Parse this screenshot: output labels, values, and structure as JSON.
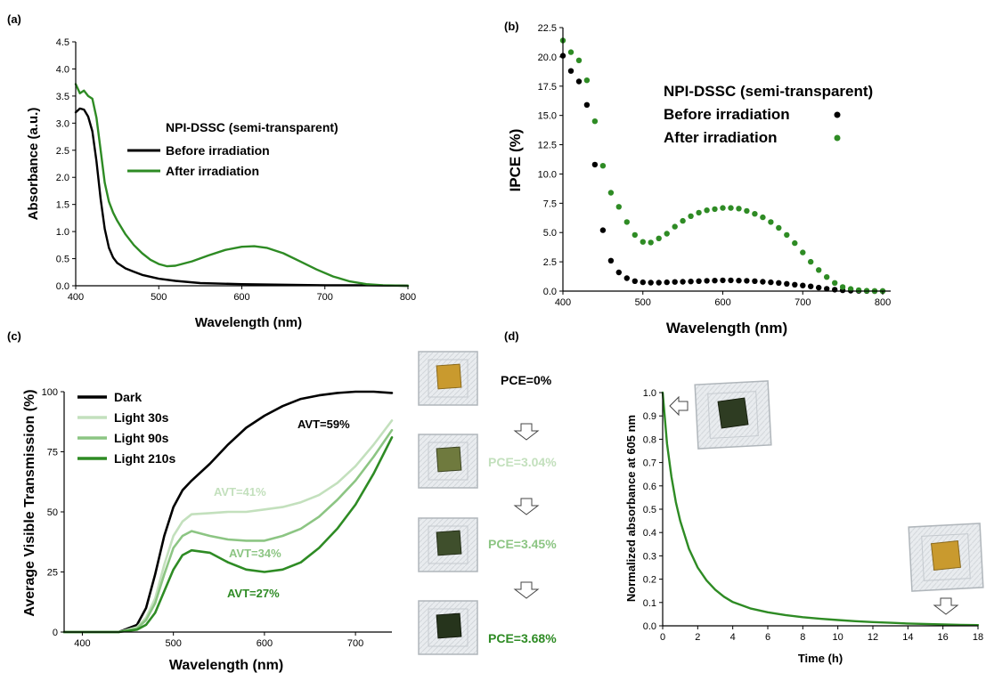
{
  "chart_data": [
    {
      "id": "a",
      "panel_label": "(a)",
      "type": "line",
      "xlabel": "Wavelength (nm)",
      "ylabel": "Absorbance (a.u.)",
      "xlim": [
        400,
        800
      ],
      "ylim": [
        0,
        4.5
      ],
      "xticks": [
        "400",
        "500",
        "600",
        "700",
        "800"
      ],
      "yticks": [
        "0.0",
        "0.5",
        "1.0",
        "1.5",
        "2.0",
        "2.5",
        "3.0",
        "3.5",
        "4.0",
        "4.5"
      ],
      "legend_title": "NPI-DSSC (semi-transparent)",
      "legend_placement": "center-right",
      "series": [
        {
          "name": "Before irradiation",
          "color": "#000000",
          "x": [
            400,
            405,
            410,
            415,
            420,
            425,
            430,
            435,
            440,
            445,
            450,
            460,
            470,
            480,
            500,
            520,
            550,
            600,
            650,
            700,
            750,
            800
          ],
          "y": [
            3.2,
            3.27,
            3.25,
            3.12,
            2.85,
            2.3,
            1.6,
            1.05,
            0.7,
            0.52,
            0.42,
            0.32,
            0.26,
            0.2,
            0.13,
            0.09,
            0.05,
            0.03,
            0.02,
            0.01,
            0.01,
            0.0
          ]
        },
        {
          "name": "After irradiation",
          "color": "#2e8b24",
          "x": [
            400,
            405,
            410,
            415,
            420,
            425,
            430,
            435,
            440,
            445,
            450,
            460,
            470,
            480,
            490,
            500,
            510,
            520,
            540,
            560,
            580,
            600,
            615,
            630,
            650,
            670,
            690,
            710,
            730,
            750,
            770,
            800
          ],
          "y": [
            3.72,
            3.55,
            3.6,
            3.5,
            3.45,
            3.1,
            2.5,
            1.9,
            1.55,
            1.35,
            1.2,
            0.95,
            0.75,
            0.6,
            0.48,
            0.4,
            0.36,
            0.37,
            0.45,
            0.56,
            0.66,
            0.72,
            0.73,
            0.7,
            0.6,
            0.45,
            0.3,
            0.17,
            0.08,
            0.03,
            0.01,
            0.0
          ]
        }
      ]
    },
    {
      "id": "b",
      "panel_label": "(b)",
      "type": "scatter",
      "xlabel": "Wavelength (nm)",
      "ylabel": "IPCE (%)",
      "xlim": [
        400,
        810
      ],
      "ylim": [
        0,
        22.5
      ],
      "xticks": [
        "400",
        "500",
        "600",
        "700",
        "800"
      ],
      "yticks": [
        "0.0",
        "2.5",
        "5.0",
        "7.5",
        "10.0",
        "12.5",
        "15.0",
        "17.5",
        "20.0",
        "22.5"
      ],
      "legend_title": "NPI-DSSC (semi-transparent)",
      "legend_placement": "top-right",
      "series": [
        {
          "name": "Before irradiation",
          "color": "#000000",
          "x": [
            400,
            410,
            420,
            430,
            440,
            450,
            460,
            470,
            480,
            490,
            500,
            510,
            520,
            530,
            540,
            550,
            560,
            570,
            580,
            590,
            600,
            610,
            620,
            630,
            640,
            650,
            660,
            670,
            680,
            690,
            700,
            710,
            720,
            730,
            740,
            750,
            760,
            770,
            780,
            790,
            800
          ],
          "y": [
            20.1,
            18.8,
            17.9,
            15.9,
            10.8,
            5.2,
            2.6,
            1.6,
            1.1,
            0.85,
            0.75,
            0.72,
            0.72,
            0.75,
            0.78,
            0.8,
            0.82,
            0.85,
            0.88,
            0.9,
            0.92,
            0.92,
            0.9,
            0.88,
            0.85,
            0.8,
            0.75,
            0.7,
            0.62,
            0.55,
            0.48,
            0.4,
            0.3,
            0.2,
            0.12,
            0.07,
            0.04,
            0.02,
            0.01,
            0.0,
            0.0
          ]
        },
        {
          "name": "After irradiation",
          "color": "#2e8b24",
          "x": [
            400,
            410,
            420,
            430,
            440,
            450,
            460,
            470,
            480,
            490,
            500,
            510,
            520,
            530,
            540,
            550,
            560,
            570,
            580,
            590,
            600,
            610,
            620,
            630,
            640,
            650,
            660,
            670,
            680,
            690,
            700,
            710,
            720,
            730,
            740,
            750,
            760,
            770,
            780,
            790,
            800
          ],
          "y": [
            21.4,
            20.4,
            19.7,
            18.0,
            14.5,
            10.7,
            8.4,
            7.2,
            5.9,
            4.8,
            4.2,
            4.15,
            4.5,
            4.9,
            5.5,
            6.0,
            6.4,
            6.7,
            6.9,
            7.0,
            7.1,
            7.1,
            7.05,
            6.85,
            6.6,
            6.3,
            5.9,
            5.4,
            4.8,
            4.1,
            3.3,
            2.5,
            1.8,
            1.2,
            0.7,
            0.35,
            0.18,
            0.08,
            0.03,
            0.01,
            0.0
          ]
        }
      ]
    },
    {
      "id": "c",
      "panel_label": "(c)",
      "type": "line",
      "xlabel": "Wavelength (nm)",
      "ylabel": "Average Visible Transmission (%)",
      "xlim": [
        380,
        740
      ],
      "ylim": [
        0,
        100
      ],
      "xticks": [
        "400",
        "500",
        "600",
        "700"
      ],
      "yticks": [
        "0",
        "25",
        "50",
        "75",
        "100"
      ],
      "legend_placement": "top-left",
      "series": [
        {
          "name": "Dark",
          "color": "#000000",
          "x": [
            380,
            440,
            460,
            470,
            480,
            490,
            500,
            510,
            520,
            540,
            560,
            580,
            600,
            620,
            640,
            660,
            680,
            700,
            720,
            740
          ],
          "y": [
            0,
            0,
            3,
            10,
            24,
            40,
            52,
            59,
            63,
            70,
            78,
            85,
            90,
            94,
            97,
            98.5,
            99.5,
            100,
            100,
            99.5
          ]
        },
        {
          "name": "Light 30s",
          "color": "#c3e0bd",
          "x": [
            380,
            440,
            460,
            470,
            480,
            490,
            500,
            510,
            520,
            540,
            560,
            580,
            600,
            620,
            640,
            660,
            680,
            700,
            720,
            740
          ],
          "y": [
            0,
            0,
            2,
            6,
            14,
            28,
            40,
            46,
            49,
            49.5,
            50,
            50,
            51,
            52,
            54,
            57,
            62,
            69,
            78,
            88
          ]
        },
        {
          "name": "Light 90s",
          "color": "#8cc583",
          "x": [
            380,
            440,
            460,
            470,
            480,
            490,
            500,
            510,
            520,
            540,
            560,
            580,
            600,
            620,
            640,
            660,
            680,
            700,
            720,
            740
          ],
          "y": [
            0,
            0,
            1.5,
            5,
            12,
            24,
            35,
            40,
            42,
            40,
            38.5,
            38,
            38,
            40,
            43,
            48,
            55,
            63,
            73,
            84
          ]
        },
        {
          "name": "Light 210s",
          "color": "#2e8b24",
          "x": [
            380,
            440,
            460,
            470,
            480,
            490,
            500,
            510,
            520,
            540,
            560,
            580,
            600,
            620,
            640,
            660,
            680,
            700,
            720,
            740
          ],
          "y": [
            0,
            0,
            1,
            3,
            8,
            17,
            26,
            32,
            34,
            33,
            29,
            26,
            25,
            26,
            29,
            35,
            43,
            53,
            66,
            81
          ]
        }
      ],
      "annotations": [
        {
          "text": "AVT=59%",
          "color": "#000000"
        },
        {
          "text": "AVT=41%",
          "color": "#c3e0bd"
        },
        {
          "text": "AVT=34%",
          "color": "#8cc583"
        },
        {
          "text": "AVT=27%",
          "color": "#2e8b24"
        }
      ],
      "pce_steps": [
        {
          "text": "PCE=0%",
          "color": "#000000",
          "device": "yellow"
        },
        {
          "text": "PCE=3.04%",
          "color": "#c3e0bd",
          "device": "green"
        },
        {
          "text": "PCE=3.45%",
          "color": "#8cc583",
          "device": "green"
        },
        {
          "text": "PCE=3.68%",
          "color": "#2e8b24",
          "device": "green"
        }
      ]
    },
    {
      "id": "d",
      "panel_label": "(d)",
      "type": "line",
      "xlabel": "Time (h)",
      "ylabel": "Normalized absorbance at 605 nm",
      "xlim": [
        0,
        18
      ],
      "ylim": [
        0,
        1.0
      ],
      "xticks": [
        "0",
        "2",
        "4",
        "6",
        "8",
        "10",
        "12",
        "14",
        "16",
        "18"
      ],
      "yticks": [
        "0.0",
        "0.1",
        "0.2",
        "0.3",
        "0.4",
        "0.5",
        "0.6",
        "0.7",
        "0.8",
        "0.9",
        "1.0"
      ],
      "series": [
        {
          "name": "",
          "color": "#2e8b24",
          "x": [
            0,
            0.25,
            0.5,
            0.75,
            1,
            1.5,
            2,
            2.5,
            3,
            3.5,
            4,
            5,
            6,
            7,
            8,
            9,
            10,
            11,
            12,
            13,
            14,
            15,
            16,
            17,
            18
          ],
          "y": [
            1.0,
            0.78,
            0.64,
            0.53,
            0.45,
            0.33,
            0.25,
            0.195,
            0.155,
            0.125,
            0.102,
            0.075,
            0.058,
            0.046,
            0.037,
            0.03,
            0.025,
            0.02,
            0.016,
            0.013,
            0.01,
            0.008,
            0.006,
            0.004,
            0.003
          ]
        }
      ],
      "devices": [
        {
          "device": "green",
          "arrow": "left"
        },
        {
          "device": "yellow",
          "arrow": "down"
        }
      ]
    }
  ]
}
